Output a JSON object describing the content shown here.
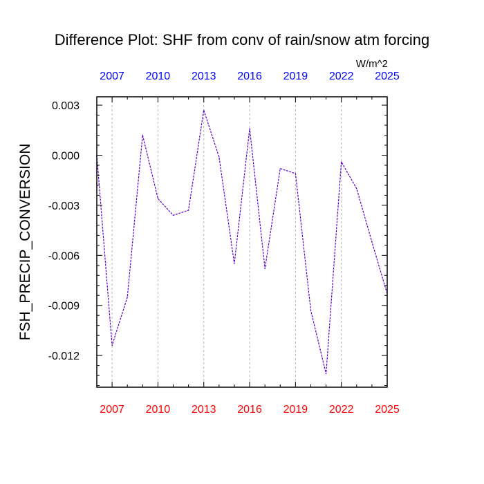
{
  "chart_data": {
    "type": "line",
    "title": "Difference Plot: SHF from conv of rain/snow atm forcing",
    "units": "W/m^2",
    "ylabel": "FSH_PRECIP_CONVERSION",
    "xlim": [
      2006,
      2025
    ],
    "ylim": [
      -0.0139,
      0.0035
    ],
    "x_ticks": [
      2007,
      2010,
      2013,
      2016,
      2019,
      2022,
      2025
    ],
    "y_ticks": [
      0.003,
      0.0,
      -0.003,
      -0.006,
      -0.009,
      -0.012
    ],
    "y_tick_labels": [
      "0.003",
      "0.000",
      "-0.003",
      "-0.006",
      "-0.009",
      "-0.012"
    ],
    "grid": "vertical dashed at x ticks",
    "series": [
      {
        "x": [
          2006,
          2007,
          2008,
          2009,
          2010,
          2011,
          2012,
          2013,
          2014,
          2015,
          2016,
          2017,
          2018,
          2019,
          2020,
          2021,
          2022,
          2023,
          2024,
          2025
        ],
        "values": [
          0.0,
          -0.0114,
          -0.0085,
          0.0012,
          -0.0026,
          -0.0036,
          -0.0033,
          0.0027,
          -0.0001,
          -0.0065,
          0.0016,
          -0.0068,
          -0.0008,
          -0.0011,
          -0.0093,
          -0.0131,
          -0.0004,
          -0.002,
          -0.0052,
          -0.0083
        ]
      }
    ],
    "colors": {
      "line": "#5a00c8",
      "top_tick_labels": "#0000ff",
      "bottom_tick_labels": "#ff0000",
      "axes": "#000000",
      "grid": "#b4b4b4"
    }
  }
}
